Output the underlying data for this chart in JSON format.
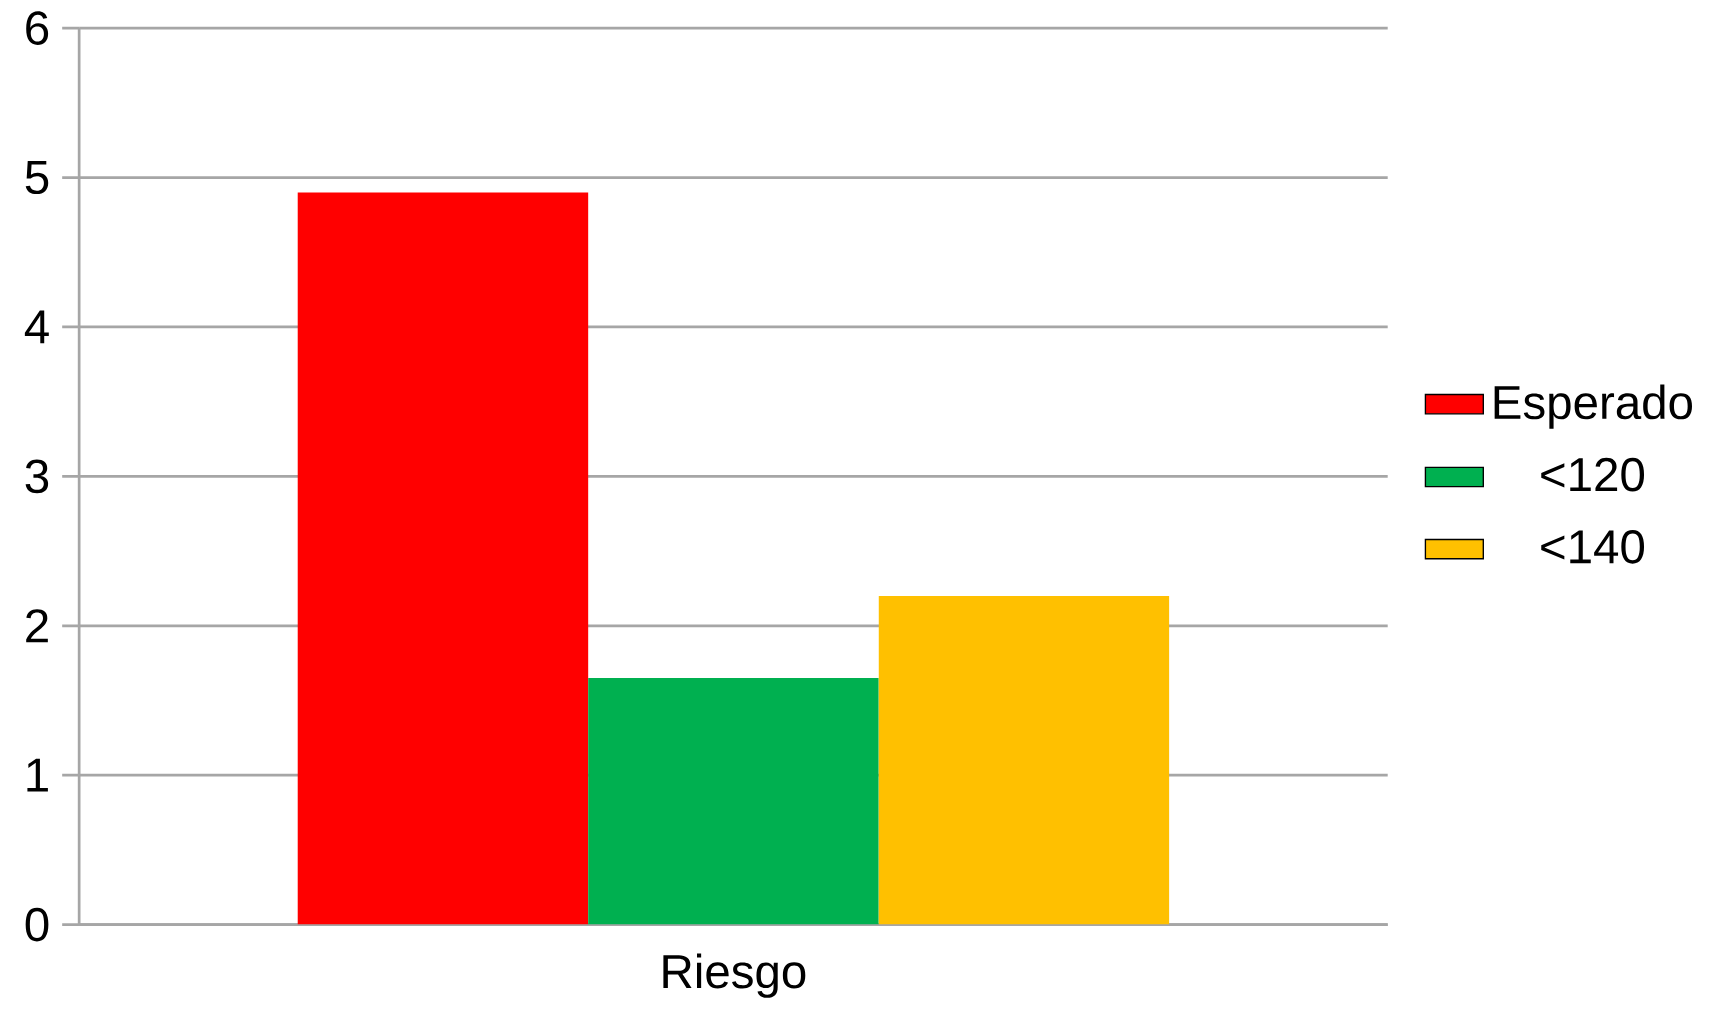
{
  "chart_data": {
    "type": "bar",
    "categories": [
      "Riesgo"
    ],
    "series": [
      {
        "name": "Esperado",
        "color": "#ff0000",
        "values": [
          4.9
        ]
      },
      {
        "name": "<120",
        "color": "#00b050",
        "values": [
          1.65
        ]
      },
      {
        "name": "<140",
        "color": "#ffc000",
        "values": [
          2.2
        ]
      }
    ],
    "ylim": [
      0,
      6
    ],
    "yticks": [
      0,
      1,
      2,
      3,
      4,
      5,
      6
    ],
    "grid": "y",
    "legend": "right"
  }
}
